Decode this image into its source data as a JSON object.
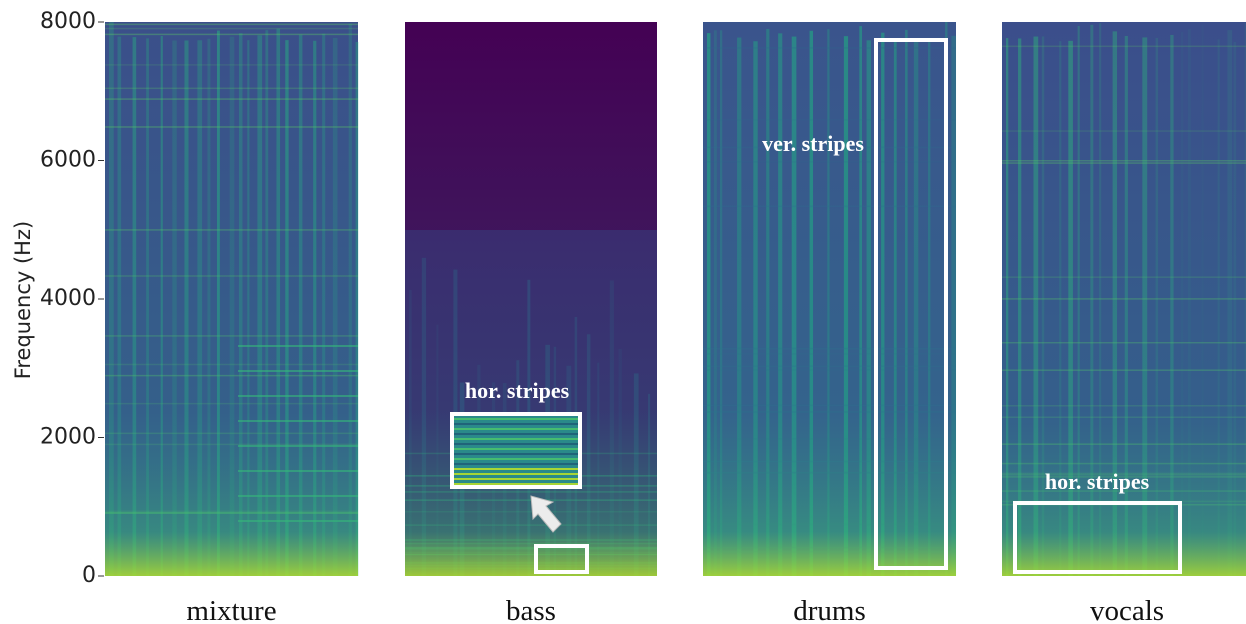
{
  "chart_data": {
    "type": "spectrogram",
    "ylabel": "Frequency (Hz)",
    "ylim": [
      0,
      8000
    ],
    "yticks": [
      0,
      2000,
      4000,
      6000,
      8000
    ],
    "panels": [
      {
        "title": "mixture",
        "annotations": []
      },
      {
        "title": "bass",
        "annotations": [
          "hor. stripes"
        ]
      },
      {
        "title": "drums",
        "annotations": [
          "ver. stripes"
        ]
      },
      {
        "title": "vocals",
        "annotations": [
          "hor. stripes"
        ]
      }
    ]
  }
}
